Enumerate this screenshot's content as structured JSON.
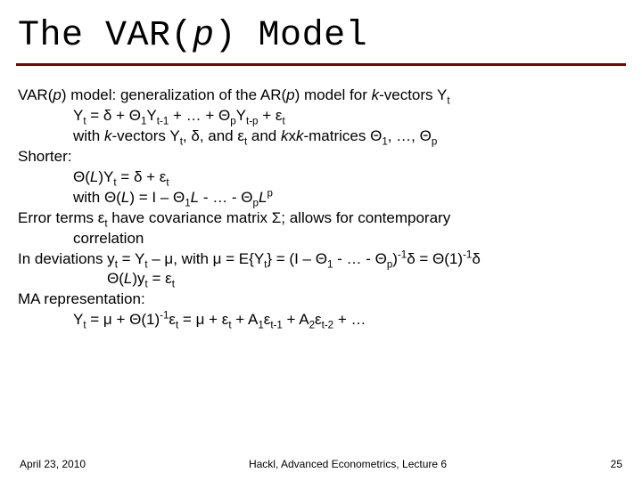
{
  "title": {
    "pre": "The VAR(",
    "var": "p",
    "post": ") Model"
  },
  "footer": {
    "date": "April 23, 2010",
    "center": "Hackl, Advanced Econometrics, Lecture 6",
    "page": "25"
  },
  "lines": {
    "l1a": "VAR(",
    "l1b": "p",
    "l1c": ") model: generalization of the AR(",
    "l1d": "p",
    "l1e": ") model for ",
    "l1f": "k",
    "l1g": "-vectors Y",
    "l2a": "Y",
    "l2b": " = δ + Θ",
    "l2c": "Y",
    "l2d": " + … + Θ",
    "l2e": "Y",
    "l2f": " + ε",
    "l3a": "with ",
    "l3b": "k",
    "l3c": "-vectors Y",
    "l3d": ", δ, and ε",
    "l3e": " and ",
    "l3f": "k",
    "l3g": "x",
    "l3h": "k",
    "l3i": "-matrices Θ",
    "l3j": ", …, Θ",
    "l4": "Shorter:",
    "l5a": "Θ(",
    "l5b": "L",
    "l5c": ")Y",
    "l5d": " = δ + ε",
    "l6a": "with Θ(",
    "l6b": "L",
    "l6c": ") = I – Θ",
    "l6d": "L",
    "l6e": " - … - Θ",
    "l6f": "L",
    "l7a": "Error terms ε",
    "l7b": " have covariance matrix Σ; allows for contemporary",
    "l7c": "correlation",
    "l8a": "In deviations y",
    "l8b": " = Y",
    "l8c": " – μ, with μ = E{Y",
    "l8d": "} = (I – Θ",
    "l8e": " - … - Θ",
    "l8f": ")",
    "l8g": "δ  =  Θ(1)",
    "l8h": "δ",
    "l9a": "Θ(",
    "l9b": "L",
    "l9c": ")y",
    "l9d": " = ε",
    "l10": "MA representation:",
    "l11a": "Y",
    "l11b": " = μ + Θ(1)",
    "l11c": "ε",
    "l11d": "  = μ + ε",
    "l11e": " + A",
    "l11f": "ε",
    "l11g": " + A",
    "l11h": "ε",
    "l11i": " + …",
    "sub_t": "t",
    "sub_1": "1",
    "sub_t1": "t-1",
    "sub_p": "p",
    "sub_tp": "t-p",
    "sub_t2": "t-2",
    "sub_2": "2",
    "sup_p": "p",
    "sup_inv": "-1"
  },
  "colors": {
    "underline": "#800000"
  }
}
